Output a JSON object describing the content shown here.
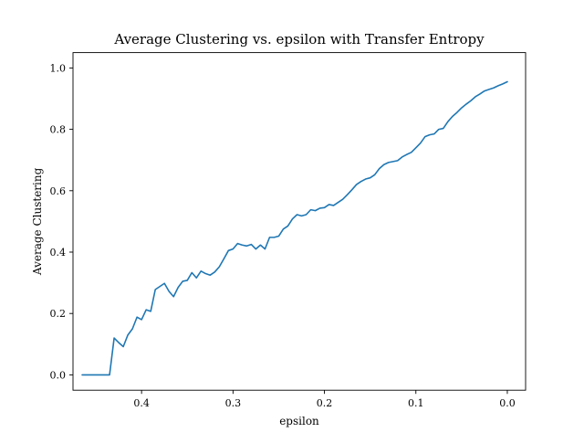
{
  "chart_data": {
    "type": "line",
    "title": "Average Clustering vs. epsilon with Transfer Entropy",
    "xlabel": "epsilon",
    "ylabel": "Average Clustering",
    "xlim": [
      0.475,
      -0.02
    ],
    "ylim": [
      -0.05,
      1.05
    ],
    "x_inverted": true,
    "grid": false,
    "xticks": [
      {
        "value": 0.4,
        "label": "0.4"
      },
      {
        "value": 0.3,
        "label": "0.3"
      },
      {
        "value": 0.2,
        "label": "0.2"
      },
      {
        "value": 0.1,
        "label": "0.1"
      },
      {
        "value": 0.0,
        "label": "0.0"
      }
    ],
    "yticks": [
      {
        "value": 0.0,
        "label": "0.0"
      },
      {
        "value": 0.2,
        "label": "0.2"
      },
      {
        "value": 0.4,
        "label": "0.4"
      },
      {
        "value": 0.6,
        "label": "0.6"
      },
      {
        "value": 0.8,
        "label": "0.8"
      },
      {
        "value": 1.0,
        "label": "1.0"
      }
    ],
    "series": [
      {
        "color": "#1f77b4",
        "x": [
          0.465,
          0.46,
          0.455,
          0.45,
          0.445,
          0.44,
          0.435,
          0.43,
          0.425,
          0.42,
          0.415,
          0.41,
          0.405,
          0.4,
          0.395,
          0.39,
          0.385,
          0.38,
          0.375,
          0.37,
          0.365,
          0.36,
          0.355,
          0.35,
          0.345,
          0.34,
          0.335,
          0.33,
          0.325,
          0.32,
          0.315,
          0.31,
          0.305,
          0.3,
          0.295,
          0.29,
          0.285,
          0.28,
          0.275,
          0.27,
          0.265,
          0.26,
          0.255,
          0.25,
          0.245,
          0.24,
          0.235,
          0.23,
          0.225,
          0.22,
          0.215,
          0.21,
          0.205,
          0.2,
          0.195,
          0.19,
          0.185,
          0.18,
          0.175,
          0.17,
          0.165,
          0.16,
          0.155,
          0.15,
          0.145,
          0.14,
          0.135,
          0.13,
          0.125,
          0.12,
          0.115,
          0.11,
          0.105,
          0.1,
          0.095,
          0.09,
          0.085,
          0.08,
          0.075,
          0.07,
          0.065,
          0.06,
          0.055,
          0.05,
          0.045,
          0.04,
          0.035,
          0.03,
          0.025,
          0.02,
          0.015,
          0.01,
          0.005,
          0.0
        ],
        "y": [
          0.0,
          0.0,
          0.0,
          0.0,
          0.0,
          0.0,
          0.0,
          0.12,
          0.105,
          0.092,
          0.13,
          0.15,
          0.188,
          0.18,
          0.212,
          0.207,
          0.278,
          0.288,
          0.298,
          0.272,
          0.255,
          0.285,
          0.305,
          0.308,
          0.333,
          0.316,
          0.338,
          0.33,
          0.325,
          0.335,
          0.352,
          0.378,
          0.405,
          0.41,
          0.428,
          0.423,
          0.42,
          0.425,
          0.41,
          0.423,
          0.41,
          0.448,
          0.448,
          0.452,
          0.475,
          0.485,
          0.508,
          0.522,
          0.518,
          0.522,
          0.538,
          0.535,
          0.543,
          0.545,
          0.555,
          0.552,
          0.562,
          0.572,
          0.587,
          0.603,
          0.62,
          0.63,
          0.638,
          0.642,
          0.652,
          0.672,
          0.685,
          0.692,
          0.695,
          0.698,
          0.71,
          0.718,
          0.725,
          0.74,
          0.755,
          0.776,
          0.782,
          0.785,
          0.8,
          0.803,
          0.825,
          0.842,
          0.855,
          0.87,
          0.882,
          0.893,
          0.906,
          0.915,
          0.925,
          0.93,
          0.935,
          0.942,
          0.948,
          0.955
        ]
      }
    ]
  }
}
